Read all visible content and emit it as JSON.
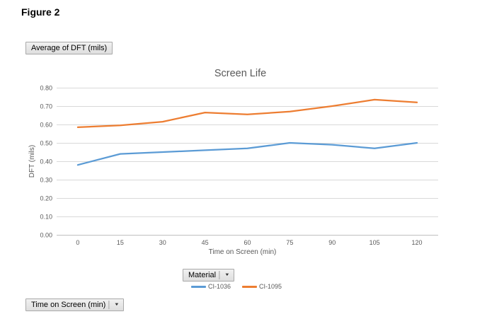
{
  "page": {
    "figure_label": "Figure 2"
  },
  "pivot_buttons": {
    "dropdown_arrow_glyph": "▼",
    "value_field": {
      "label": "Average of DFT (mils)"
    },
    "legend_field": {
      "label": "Material"
    },
    "axis_field": {
      "label": "Time on Screen (min)"
    }
  },
  "chart_data": {
    "type": "line",
    "title": "Screen Life",
    "xlabel": "Time on Screen (min)",
    "ylabel": "DFT (mils)",
    "categories": [
      0,
      15,
      30,
      45,
      60,
      75,
      90,
      105,
      120
    ],
    "series": [
      {
        "name": "CI-1036",
        "color": "#5B9BD5",
        "values": [
          0.38,
          0.44,
          0.45,
          0.46,
          0.47,
          0.5,
          0.49,
          0.47,
          0.5
        ]
      },
      {
        "name": "CI-1095",
        "color": "#ED7D31",
        "values": [
          0.585,
          0.595,
          0.615,
          0.665,
          0.655,
          0.67,
          0.7,
          0.735,
          0.72
        ]
      }
    ],
    "ylim": [
      0.0,
      0.8
    ],
    "ytick_step": 0.1,
    "ytick_decimals": 2,
    "grid": true,
    "grid_color": "#D9D9D9",
    "axis_line_color": "#BFBFBF",
    "text_color": "#595959",
    "legend_position": "bottom"
  }
}
